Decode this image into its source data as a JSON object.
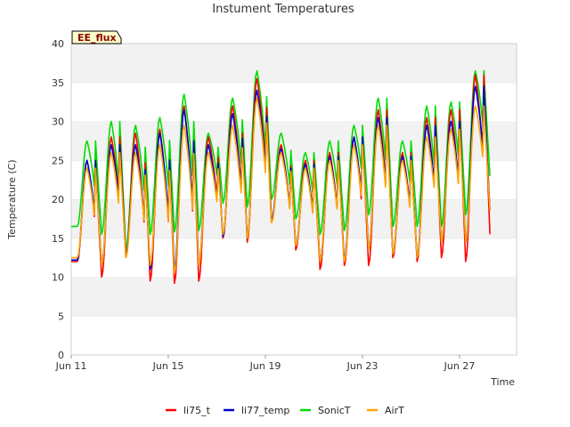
{
  "chart_data": {
    "type": "line",
    "title": "Instument Temperatures",
    "xlabel": "Time",
    "ylabel": "Temperature (C)",
    "badge": "EE_flux",
    "xlim": [
      "Jun 11",
      "Jun 29"
    ],
    "ylim": [
      0,
      40
    ],
    "yticks": [
      0,
      5,
      10,
      15,
      20,
      25,
      30,
      35,
      40
    ],
    "xticks": [
      "Jun 11",
      "Jun 15",
      "Jun 19",
      "Jun 23",
      "Jun 27"
    ],
    "grid": "horizontal bands",
    "legend_position": "bottom",
    "daily_x": [
      "Jun 11",
      "Jun 12",
      "Jun 13",
      "Jun 14",
      "Jun 15",
      "Jun 16",
      "Jun 17",
      "Jun 18",
      "Jun 19",
      "Jun 20",
      "Jun 21",
      "Jun 22",
      "Jun 23",
      "Jun 24",
      "Jun 25",
      "Jun 26",
      "Jun 27",
      "Jun 28"
    ],
    "series": [
      {
        "name": "li75_t",
        "color": "#ff0000",
        "daily_min": [
          12.0,
          10.0,
          12.5,
          9.5,
          9.2,
          9.5,
          15.0,
          14.5,
          17.0,
          13.5,
          11.0,
          11.5,
          11.5,
          12.5,
          12.0,
          12.5,
          12.0,
          15.5
        ],
        "daily_max": [
          25.0,
          28.0,
          28.5,
          29.0,
          32.0,
          28.0,
          32.0,
          35.5,
          27.0,
          25.0,
          26.0,
          28.0,
          31.5,
          26.0,
          30.5,
          31.5,
          36.0,
          17.5
        ]
      },
      {
        "name": "li77_temp",
        "color": "#0000cc",
        "daily_min": [
          12.2,
          11.5,
          12.8,
          11.0,
          11.0,
          11.5,
          15.2,
          15.0,
          17.3,
          14.0,
          12.0,
          12.2,
          13.5,
          13.0,
          12.5,
          14.5,
          14.5,
          18.5
        ],
        "daily_max": [
          25.0,
          27.0,
          27.0,
          28.5,
          31.5,
          27.0,
          31.0,
          34.0,
          26.5,
          24.5,
          25.5,
          28.0,
          30.5,
          25.5,
          29.5,
          30.0,
          34.5,
          18.5
        ]
      },
      {
        "name": "SonicT",
        "color": "#00dd00",
        "daily_min": [
          16.5,
          15.5,
          13.5,
          15.5,
          15.8,
          16.0,
          19.5,
          19.0,
          20.0,
          17.5,
          15.5,
          16.0,
          18.0,
          16.5,
          16.5,
          16.5,
          18.0,
          23.0
        ],
        "daily_max": [
          27.5,
          30.0,
          29.5,
          30.5,
          33.5,
          28.5,
          33.0,
          36.5,
          28.5,
          26.0,
          27.5,
          29.5,
          33.0,
          27.5,
          32.0,
          32.5,
          36.5,
          23.0
        ]
      },
      {
        "name": "AirT",
        "color": "#ffa500",
        "daily_min": [
          12.5,
          11.5,
          12.5,
          11.5,
          10.5,
          11.5,
          15.5,
          15.0,
          17.0,
          14.0,
          12.0,
          12.0,
          13.5,
          13.0,
          12.5,
          14.5,
          14.5,
          18.5
        ],
        "daily_max": [
          24.0,
          26.0,
          26.0,
          27.0,
          29.5,
          26.0,
          29.5,
          33.0,
          26.0,
          24.0,
          25.0,
          27.0,
          29.5,
          25.0,
          28.0,
          29.0,
          32.0,
          18.5
        ]
      }
    ]
  }
}
